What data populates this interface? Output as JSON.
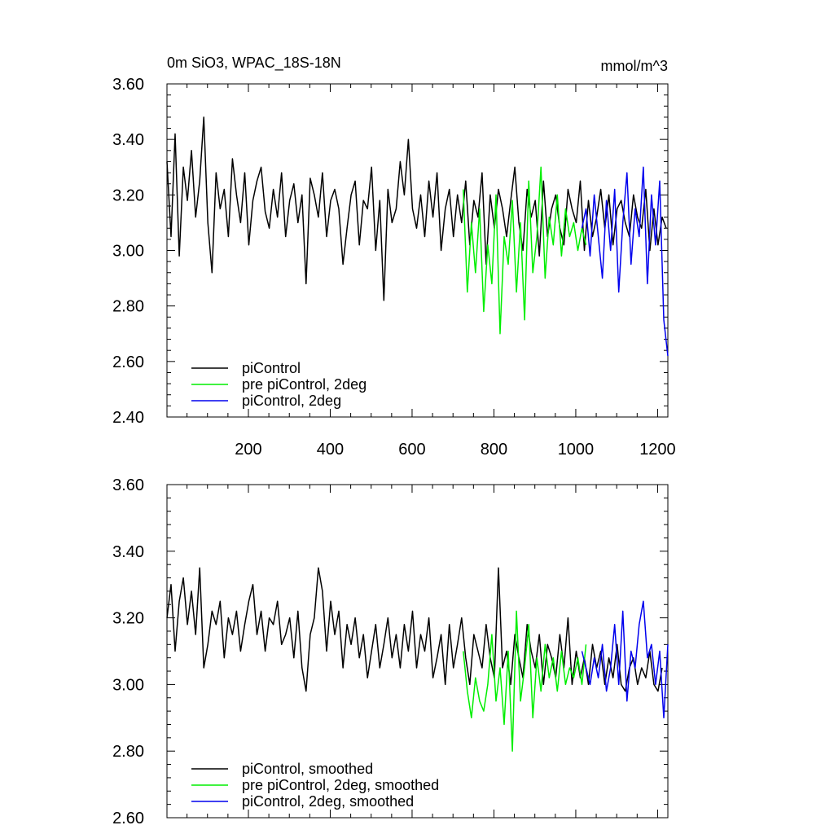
{
  "chart_data": [
    {
      "type": "line",
      "title": "0m SiO3, WPAC_18S-18N",
      "units": "mmol/m^3",
      "xlim": [
        1,
        1225
      ],
      "ylim": [
        2.4,
        3.6
      ],
      "xticks": [
        200,
        400,
        600,
        800,
        1000,
        1200
      ],
      "xtick_labels": [
        "200",
        "400",
        "600",
        "800",
        "1000",
        "1200"
      ],
      "yticks": [
        2.4,
        2.6,
        2.8,
        3.0,
        3.2,
        3.4,
        3.6
      ],
      "ytick_labels": [
        "2.40",
        "2.60",
        "2.80",
        "3.00",
        "3.20",
        "3.40",
        "3.60"
      ],
      "grid": false,
      "legend_position": "bottom-left",
      "series": [
        {
          "name": "piControl",
          "color": "#000000",
          "x_start": 1,
          "x_step": 10,
          "values": [
            3.32,
            3.05,
            3.42,
            2.98,
            3.3,
            3.18,
            3.36,
            3.12,
            3.25,
            3.48,
            3.1,
            2.92,
            3.28,
            3.15,
            3.22,
            3.05,
            3.33,
            3.2,
            3.1,
            3.28,
            3.02,
            3.18,
            3.25,
            3.3,
            3.14,
            3.08,
            3.22,
            3.12,
            3.28,
            3.05,
            3.18,
            3.24,
            3.1,
            3.2,
            2.88,
            3.26,
            3.2,
            3.12,
            3.28,
            3.05,
            3.18,
            3.22,
            3.15,
            2.95,
            3.08,
            3.2,
            3.25,
            3.02,
            3.18,
            3.15,
            3.3,
            3.0,
            3.18,
            2.82,
            3.22,
            3.1,
            3.15,
            3.32,
            3.2,
            3.4,
            3.15,
            3.08,
            3.2,
            3.05,
            3.25,
            3.12,
            3.28,
            3.0,
            3.15,
            3.22,
            3.05,
            3.2,
            3.1,
            3.25,
            3.02,
            3.18,
            3.12,
            3.28,
            2.95,
            3.2,
            3.08,
            3.22,
            3.15,
            3.05,
            3.18,
            3.3,
            3.1,
            3.0,
            3.22,
            3.12,
            3.18,
            2.98,
            3.25,
            3.05,
            3.15,
            3.2,
            3.08,
            3.02,
            3.22,
            3.15,
            3.1,
            3.25,
            3.0,
            3.18,
            3.05,
            3.12,
            3.22,
            3.08,
            3.2,
            3.02,
            3.15,
            3.18,
            3.1,
            3.05,
            3.2,
            3.12,
            3.08,
            3.22,
            3.0,
            3.15,
            3.02,
            3.12,
            3.08
          ]
        },
        {
          "name": "pre piControl, 2deg",
          "color": "#00ee00",
          "x_start": 725,
          "x_step": 10,
          "values": [
            3.22,
            2.85,
            3.1,
            2.92,
            3.15,
            2.78,
            3.02,
            2.88,
            3.2,
            2.7,
            3.05,
            2.95,
            3.18,
            2.85,
            3.1,
            2.75,
            3.25,
            2.92,
            3.05,
            3.3,
            2.9,
            3.12,
            3.02,
            3.2,
            2.98,
            3.15,
            3.05,
            3.1,
            3.0,
            3.08,
            3.02
          ]
        },
        {
          "name": "piControl, 2deg",
          "color": "#0000ee",
          "x_start": 1015,
          "x_step": 10,
          "values": [
            3.08,
            3.15,
            2.98,
            3.2,
            3.05,
            2.9,
            3.18,
            3.0,
            3.22,
            2.85,
            3.1,
            3.28,
            2.95,
            3.15,
            3.05,
            3.3,
            2.88,
            3.2,
            3.02,
            3.25,
            2.75,
            2.62
          ]
        }
      ]
    },
    {
      "type": "line",
      "title": "",
      "xlim": [
        1,
        1225
      ],
      "ylim": [
        2.6,
        3.6
      ],
      "xticks": [
        200,
        400,
        600,
        800,
        1000,
        1200
      ],
      "yticks": [
        2.6,
        2.8,
        3.0,
        3.2,
        3.4,
        3.6
      ],
      "ytick_labels": [
        "2.60",
        "2.80",
        "3.00",
        "3.20",
        "3.40",
        "3.60"
      ],
      "grid": false,
      "legend_position": "bottom-left",
      "series": [
        {
          "name": "piControl, smoothed",
          "color": "#000000",
          "x_start": 1,
          "x_step": 10,
          "values": [
            3.2,
            3.3,
            3.1,
            3.25,
            3.32,
            3.18,
            3.28,
            3.15,
            3.35,
            3.05,
            3.12,
            3.22,
            3.18,
            3.25,
            3.08,
            3.2,
            3.15,
            3.22,
            3.1,
            3.18,
            3.25,
            3.3,
            3.15,
            3.22,
            3.1,
            3.2,
            3.18,
            3.25,
            3.12,
            3.15,
            3.2,
            3.08,
            3.22,
            3.05,
            2.98,
            3.15,
            3.2,
            3.35,
            3.28,
            3.1,
            3.25,
            3.15,
            3.22,
            3.05,
            3.18,
            3.12,
            3.2,
            3.08,
            3.15,
            3.02,
            3.1,
            3.18,
            3.05,
            3.12,
            3.2,
            3.08,
            3.15,
            3.05,
            3.18,
            3.1,
            3.22,
            3.05,
            3.15,
            3.1,
            3.2,
            3.02,
            3.08,
            3.15,
            3.0,
            3.18,
            3.05,
            3.12,
            3.2,
            3.08,
            3.0,
            3.15,
            3.1,
            3.05,
            3.18,
            3.08,
            3.02,
            3.35,
            3.05,
            3.1,
            3.0,
            3.15,
            3.08,
            3.02,
            3.18,
            3.1,
            3.05,
            3.15,
            3.0,
            3.12,
            3.08,
            3.02,
            3.15,
            3.05,
            3.2,
            3.0,
            3.1,
            3.02,
            3.08,
            3.0,
            3.12,
            3.05,
            3.1,
            3.0,
            3.08,
            3.02,
            3.12,
            3.0,
            2.98,
            3.05,
            3.08,
            3.0,
            3.05,
            3.02,
            3.1,
            3.0,
            2.98,
            3.05
          ]
        },
        {
          "name": "pre piControl, 2deg, smoothed",
          "color": "#00ee00",
          "x_start": 725,
          "x_step": 10,
          "values": [
            3.1,
            2.98,
            2.9,
            3.02,
            2.95,
            2.92,
            3.0,
            3.15,
            2.95,
            3.05,
            2.88,
            3.1,
            2.8,
            3.22,
            2.95,
            3.05,
            3.18,
            2.9,
            3.08,
            2.98,
            3.12,
            3.02,
            3.08,
            2.98,
            3.1,
            3.0,
            3.05,
            3.02,
            3.08,
            3.0,
            3.12
          ]
        },
        {
          "name": "piControl, 2deg, smoothed",
          "color": "#0000ee",
          "x_start": 1015,
          "x_step": 10,
          "values": [
            3.1,
            3.05,
            3.0,
            3.08,
            3.02,
            3.12,
            2.98,
            3.05,
            3.18,
            3.0,
            3.22,
            2.95,
            3.1,
            3.05,
            3.18,
            3.25,
            3.08,
            3.12,
            3.0,
            3.1,
            2.9,
            3.12
          ]
        }
      ]
    }
  ]
}
